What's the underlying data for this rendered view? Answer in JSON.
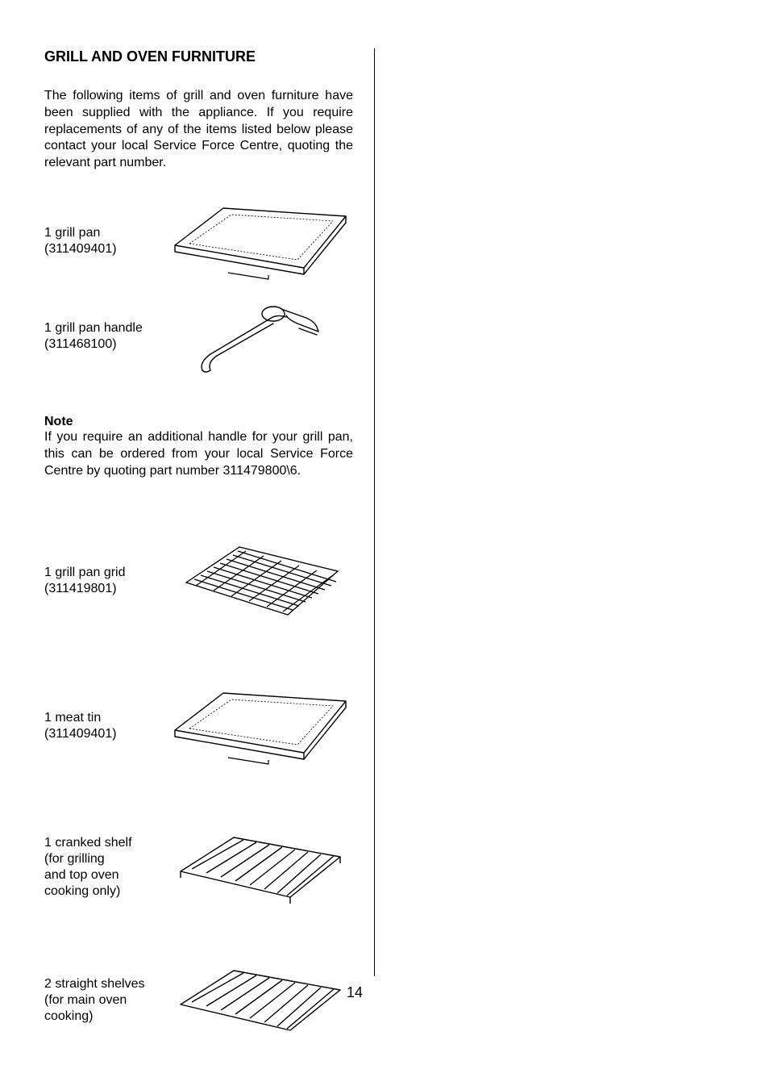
{
  "heading": "GRILL AND OVEN FURNITURE",
  "intro": "The following items of grill and oven furniture have been supplied with the appliance.  If you require replacements of any of the items listed below please contact your local Service Force Centre, quoting the relevant part number.",
  "items": [
    {
      "label": "1 grill pan\n(311409401)",
      "icon": "tray"
    },
    {
      "label": "1 grill pan handle\n(311468100)",
      "icon": "handle"
    }
  ],
  "note": {
    "title": "Note",
    "body": "If you require an additional handle for your grill pan, this can be ordered from your local Service Force Centre by quoting part number 311479800\\6."
  },
  "items2": [
    {
      "label": "1 grill pan grid\n(311419801)",
      "icon": "grid"
    },
    {
      "label": "1 meat tin\n(311409401)",
      "icon": "tray"
    },
    {
      "label": "1 cranked shelf\n(for grilling\nand top oven\ncooking only)",
      "icon": "shelf"
    },
    {
      "label": "2 straight shelves\n(for main oven\ncooking)",
      "icon": "shelf"
    }
  ],
  "page_number": "14",
  "svg": {
    "stroke": "#000000",
    "stroke_width": 1.3
  }
}
